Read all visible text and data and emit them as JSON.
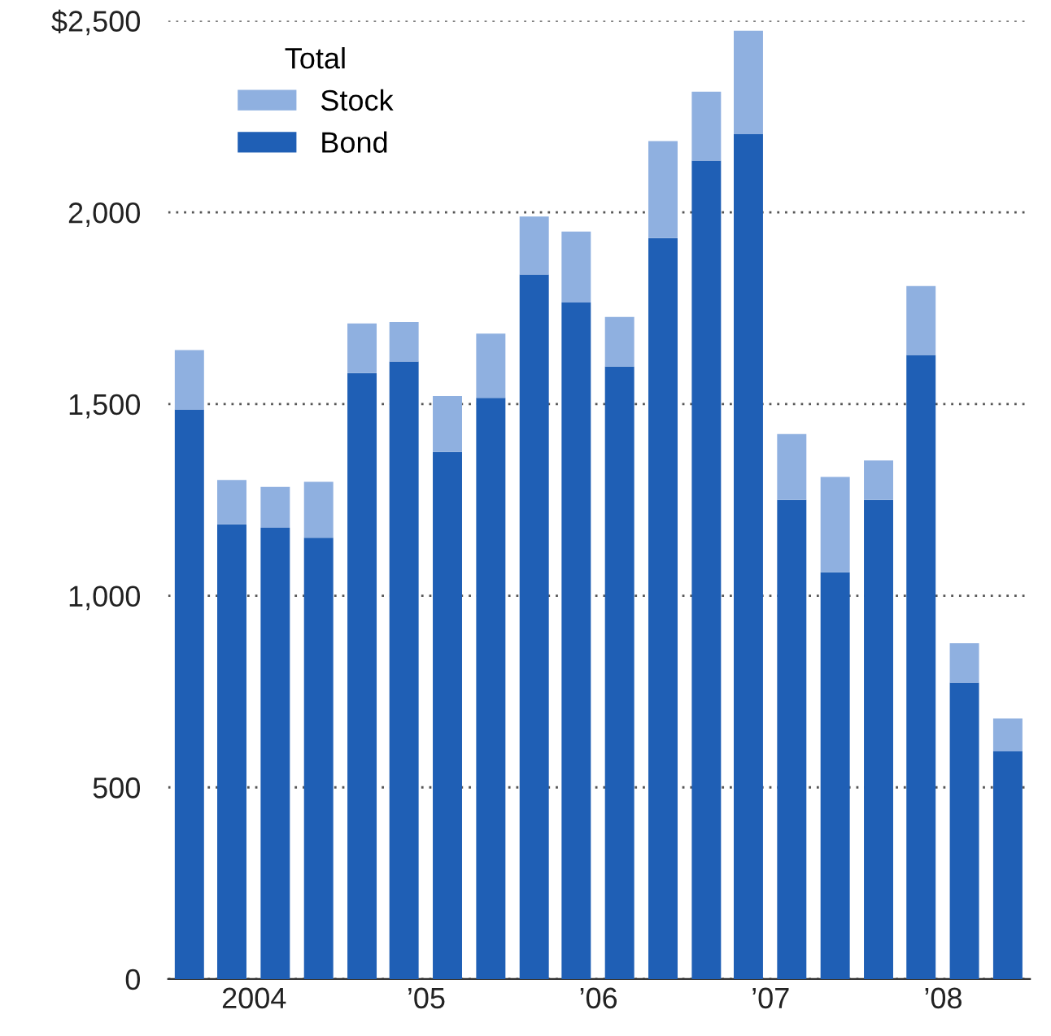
{
  "chart_data": {
    "type": "bar",
    "stacked": true,
    "legend": "top left",
    "legend_title": "Total",
    "grid": "y",
    "x": [
      "2004-02-15",
      "2004-05-15",
      "2004-08-15",
      "2004-11-15",
      "2005-02-15",
      "2005-05-15",
      "2005-08-15",
      "2005-11-15",
      "2006-02-15",
      "2006-05-15",
      "2006-08-15",
      "2006-11-15",
      "2007-02-15",
      "2007-05-15",
      "2007-08-15",
      "2007-11-15",
      "2008-02-15",
      "2008-05-15",
      "2008-08-15",
      "2008-11-15"
    ],
    "xlim": [
      "2004-01-01",
      "2009-01-01"
    ],
    "xticks": [
      {
        "value": "2004-07-01",
        "label": "2004"
      },
      {
        "value": "2005-07-01",
        "label": "’05"
      },
      {
        "value": "2006-07-01",
        "label": "’06"
      },
      {
        "value": "2007-07-01",
        "label": "’07"
      },
      {
        "value": "2008-07-01",
        "label": "’08"
      }
    ],
    "ylim": [
      0,
      2500
    ],
    "yticks": [
      0,
      500,
      {
        "value": 1000,
        "label": "1,000"
      },
      {
        "value": 1500,
        "label": "1,500"
      },
      {
        "value": 2000,
        "label": "2,000"
      },
      {
        "value": 2500,
        "label": "$2,500"
      }
    ],
    "series": [
      {
        "name": "Bond",
        "color": "#1f5fb5",
        "values": [
          1486,
          1186,
          1177,
          1151,
          1581,
          1611,
          1375,
          1516,
          1838,
          1765,
          1598,
          1933,
          2135,
          2204,
          1250,
          1061,
          1250,
          1628,
          773,
          594
        ]
      },
      {
        "name": "Stock",
        "color": "#8fb0e0",
        "values": [
          155,
          116,
          107,
          146,
          129,
          103,
          146,
          168,
          151,
          185,
          129,
          253,
          180,
          270,
          172,
          249,
          103,
          180,
          103,
          86
        ]
      }
    ]
  }
}
